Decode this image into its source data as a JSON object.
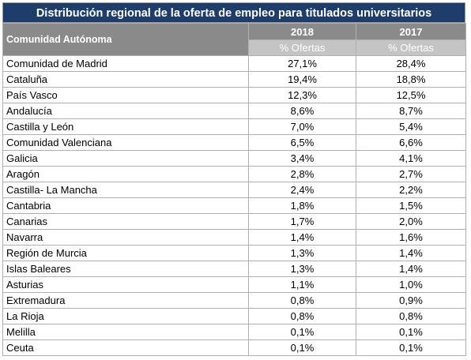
{
  "title": "Distribución regional de la oferta de empleo para titulados universitarios",
  "header": {
    "label": "Comunidad Autónoma",
    "years": [
      "2018",
      "2017"
    ],
    "unit": "% Ofertas"
  },
  "rows": [
    {
      "region": "Comunidad de Madrid",
      "v2018": "27,1%",
      "v2017": "28,4%"
    },
    {
      "region": "Cataluña",
      "v2018": "19,4%",
      "v2017": "18,8%"
    },
    {
      "region": "País Vasco",
      "v2018": "12,3%",
      "v2017": "12,5%"
    },
    {
      "region": "Andalucía",
      "v2018": "8,6%",
      "v2017": "8,7%"
    },
    {
      "region": "Castilla y León",
      "v2018": "7,0%",
      "v2017": "5,4%"
    },
    {
      "region": "Comunidad Valenciana",
      "v2018": "6,5%",
      "v2017": "6,6%"
    },
    {
      "region": "Galicia",
      "v2018": "3,4%",
      "v2017": "4,1%"
    },
    {
      "region": "Aragón",
      "v2018": "2,8%",
      "v2017": "2,7%"
    },
    {
      "region": "Castilla- La Mancha",
      "v2018": "2,4%",
      "v2017": "2,2%"
    },
    {
      "region": "Cantabria",
      "v2018": "1,8%",
      "v2017": "1,5%"
    },
    {
      "region": "Canarias",
      "v2018": "1,7%",
      "v2017": "2,0%"
    },
    {
      "region": "Navarra",
      "v2018": "1,4%",
      "v2017": "1,6%"
    },
    {
      "region": "Región de Murcia",
      "v2018": "1,3%",
      "v2017": "1,4%"
    },
    {
      "region": "Islas Baleares",
      "v2018": "1,3%",
      "v2017": "1,4%"
    },
    {
      "region": "Asturias",
      "v2018": "1,1%",
      "v2017": "1,0%"
    },
    {
      "region": "Extremadura",
      "v2018": "0,8%",
      "v2017": "0,9%"
    },
    {
      "region": "La Rioja",
      "v2018": "0,8%",
      "v2017": "0,8%"
    },
    {
      "region": "Melilla",
      "v2018": "0,1%",
      "v2017": "0,1%"
    },
    {
      "region": "Ceuta",
      "v2018": "0,1%",
      "v2017": "0,1%"
    }
  ],
  "colors": {
    "title_bg": "#1f3d6b",
    "header_bg": "#8a8a8a",
    "subheader_bg": "#c4c4c4"
  }
}
